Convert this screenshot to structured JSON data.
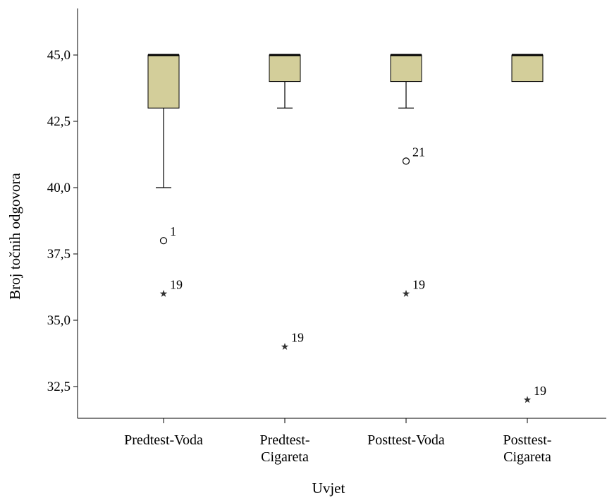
{
  "chart_data": {
    "type": "boxplot",
    "xlabel": "Uvjet",
    "ylabel": "Broj točnih odgovora",
    "ylim": [
      31.3,
      46.8
    ],
    "yticks": [
      "32,5",
      "35,0",
      "37,5",
      "40,0",
      "42,5",
      "45,0"
    ],
    "ytick_values": [
      32.5,
      35.0,
      37.5,
      40.0,
      42.5,
      45.0
    ],
    "grid": false,
    "box_color": "#D3CE9A",
    "categories": [
      [
        "Predtest-Voda"
      ],
      [
        "Predtest-",
        "Cigareta"
      ],
      [
        "Posttest-Voda"
      ],
      [
        "Posttest-",
        "Cigareta"
      ]
    ],
    "boxes": [
      {
        "whisker_low": 40.0,
        "q1": 43.0,
        "median": 45.0,
        "q3": 45.0,
        "whisker_high": 45.0
      },
      {
        "whisker_low": 43.0,
        "q1": 44.0,
        "median": 45.0,
        "q3": 45.0,
        "whisker_high": 45.0
      },
      {
        "whisker_low": 43.0,
        "q1": 44.0,
        "median": 45.0,
        "q3": 45.0,
        "whisker_high": 45.0
      },
      {
        "whisker_low": 44.0,
        "q1": 44.0,
        "median": 45.0,
        "q3": 45.0,
        "whisker_high": 45.0
      }
    ],
    "outliers": [
      {
        "category": 0,
        "value": 38.0,
        "marker": "circle",
        "label": "1"
      },
      {
        "category": 0,
        "value": 36.0,
        "marker": "star",
        "label": "19"
      },
      {
        "category": 1,
        "value": 34.0,
        "marker": "star",
        "label": "19"
      },
      {
        "category": 2,
        "value": 41.0,
        "marker": "circle",
        "label": "21"
      },
      {
        "category": 2,
        "value": 36.0,
        "marker": "star",
        "label": "19"
      },
      {
        "category": 3,
        "value": 32.0,
        "marker": "star",
        "label": "19"
      }
    ]
  }
}
